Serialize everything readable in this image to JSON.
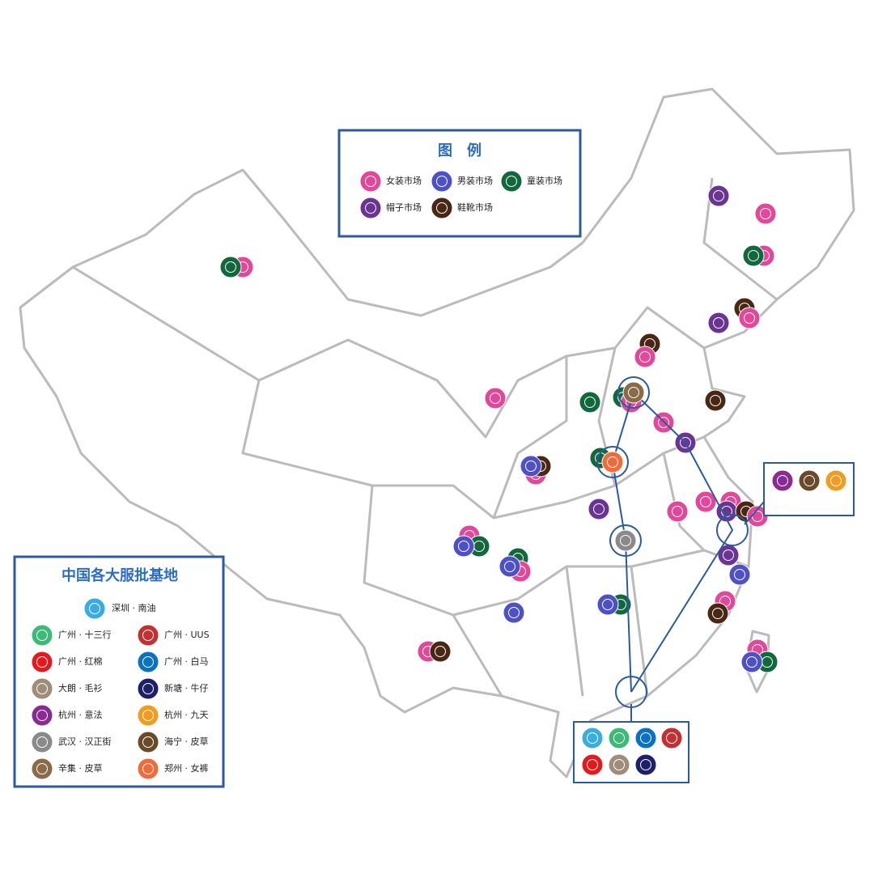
{
  "legend": {
    "title": "图　例",
    "items": [
      {
        "label": "女装市场",
        "color": "#e2479a"
      },
      {
        "label": "男装市场",
        "color": "#4e50c6"
      },
      {
        "label": "童装市场",
        "color": "#11683c"
      },
      {
        "label": "帽子市场",
        "color": "#6a3497"
      },
      {
        "label": "鞋靴市场",
        "color": "#4a2714"
      }
    ]
  },
  "bases": {
    "title": "中国各大服批基地",
    "featured": {
      "label": "深圳 · 南油",
      "color": "#39ade2"
    },
    "items": [
      {
        "label": "广州 · 十三行",
        "color": "#3dba77"
      },
      {
        "label": "广州 · UUS",
        "color": "#c23031"
      },
      {
        "label": "广州 · 红棉",
        "color": "#e5191b"
      },
      {
        "label": "广州 · 白马",
        "color": "#0b72c2"
      },
      {
        "label": "大朗 · 毛衫",
        "color": "#9f8c79"
      },
      {
        "label": "新塘 · 牛仔",
        "color": "#1f206c"
      },
      {
        "label": "杭州 · 意法",
        "color": "#8b2a95"
      },
      {
        "label": "杭州 · 九天",
        "color": "#f39b20"
      },
      {
        "label": "武汉 · 汉正街",
        "color": "#8a8a8a"
      },
      {
        "label": "海宁 · 皮草",
        "color": "#6b4a2a"
      },
      {
        "label": "辛集 · 皮草",
        "color": "#8b6a48"
      },
      {
        "label": "郑州 · 女裤",
        "color": "#f26a3a"
      }
    ]
  }
}
